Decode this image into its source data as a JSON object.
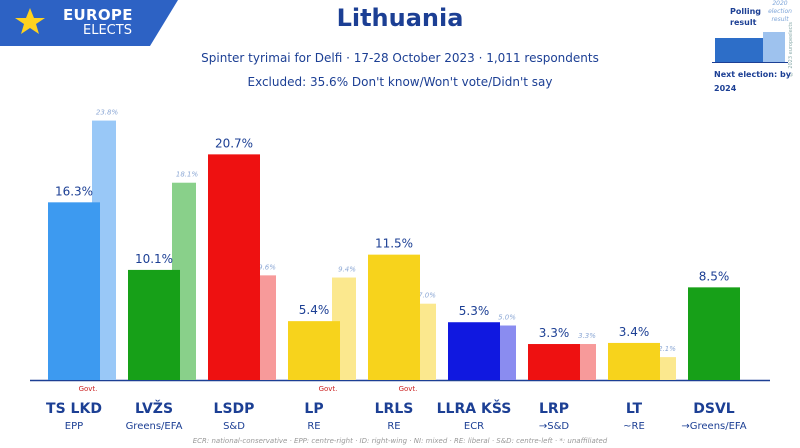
{
  "header": {
    "brand_line1": "EUROPE",
    "brand_line2": "ELECTS",
    "title": "Lithuania",
    "subtitle": "Spinter tyrimai for Delfi · 17-28 October 2023 · 1,011 respondents",
    "excluded": "Excluded: 35.6% Don't know/Won't vote/Didn't say"
  },
  "legend": {
    "polling_label": "Polling result",
    "previous_label": "2020 election result",
    "copyright": "© 2023 europeelects",
    "next_election": "Next election: by 2024"
  },
  "colors": {
    "brand_blue": "#1c3f94",
    "logo_bg": "#2d62c4"
  },
  "chart_data": {
    "type": "bar",
    "categories": [
      "TS LKD",
      "LVŽS",
      "LSDP",
      "LP",
      "LRLS",
      "LLRA KŠS",
      "LRP",
      "LT",
      "DSVL"
    ],
    "groups": [
      "EPP",
      "Greens/EFA",
      "S&D",
      "RE",
      "RE",
      "ECR",
      "→S&D",
      "~RE",
      "→Greens/EFA"
    ],
    "govt": [
      true,
      false,
      false,
      true,
      true,
      false,
      false,
      false,
      false
    ],
    "govt_label": "Govt.",
    "series": [
      {
        "values": [
          16.3,
          10.1,
          20.7,
          5.4,
          11.5,
          5.3,
          3.3,
          3.4,
          8.5
        ]
      },
      {
        "values": [
          23.8,
          18.1,
          9.6,
          9.4,
          7.0,
          5.0,
          3.3,
          2.1,
          null
        ]
      }
    ],
    "value_labels": [
      "16.3%",
      "10.1%",
      "20.7%",
      "5.4%",
      "11.5%",
      "5.3%",
      "3.3%",
      "3.4%",
      "8.5%"
    ],
    "previous_labels": [
      "23.8%",
      "18.1%",
      "9.6%",
      "9.4%",
      "7.0%",
      "5.0%",
      "3.3%",
      "2.1%",
      ""
    ],
    "colors": [
      "#3d9af0",
      "#17a018",
      "#ee1111",
      "#f7d31c",
      "#f7d31c",
      "#1018e0",
      "#ee1111",
      "#f7d31c",
      "#17a018"
    ],
    "previous_colors": [
      "#99c8f7",
      "#89d08a",
      "#f79a9a",
      "#fbe88e",
      "#fbe88e",
      "#8a8cf0",
      "#f79a9a",
      "#fbe88e",
      ""
    ]
  },
  "footnote": "ECR: national-conservative · EPP: centre-right · ID: right-wing · NI: mixed · RE: liberal · S&D: centre-left · *: unaffiliated"
}
